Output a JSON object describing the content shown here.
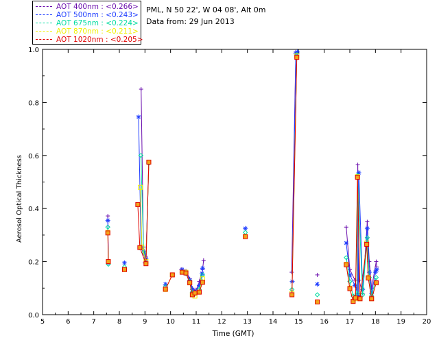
{
  "legend": [
    {
      "label": "AOT  400nm : <0.266>",
      "color": "#6a0dad"
    },
    {
      "label": "AOT  500nm : <0.243>",
      "color": "#1e3cff"
    },
    {
      "label": "AOT  675nm : <0.224>",
      "color": "#00dca0"
    },
    {
      "label": "AOT  870nm : <0.211>",
      "color": "#f0f000"
    },
    {
      "label": "AOT 1020nm : <0.205>",
      "color": "#e00000"
    }
  ],
  "info": {
    "location": "PML, N 50 22', W 04 08', Alt 0m",
    "date": "Data from: 29 Jun 2013"
  },
  "chart_data": {
    "type": "line",
    "xlabel": "Time (GMT)",
    "ylabel": "Aerosol Optical Thickness",
    "xlim": [
      5,
      20
    ],
    "ylim": [
      0,
      1.0
    ],
    "xticks": [
      "5",
      "6",
      "7",
      "8",
      "9",
      "10",
      "11",
      "12",
      "13",
      "14",
      "15",
      "16",
      "17",
      "18",
      "19",
      "20"
    ],
    "yticks": [
      "0.0",
      "0.2",
      "0.4",
      "0.6",
      "0.8",
      "1.0"
    ],
    "connect_gap": 0.3,
    "series": [
      {
        "name": "AOT 400nm",
        "color": "#6a0dad",
        "marker": "plus",
        "x": [
          7.55,
          7.57,
          8.85,
          8.94,
          8.97,
          8.99,
          9.04,
          9.15,
          10.42,
          10.6,
          10.75,
          10.85,
          10.95,
          11.05,
          11.12,
          11.25,
          11.29,
          14.73,
          14.89,
          14.95,
          15.73,
          16.86,
          17.0,
          17.2,
          17.3,
          17.31,
          17.36,
          17.5,
          17.68,
          17.76,
          17.85,
          18.03,
          18.05
        ],
        "y": [
          0.372,
          0.207,
          0.85,
          0.255,
          0.24,
          0.195,
          0.22,
          0.575,
          0.17,
          0.165,
          0.135,
          0.1,
          0.09,
          0.1,
          0.125,
          0.17,
          0.205,
          0.16,
          0.99,
          0.985,
          0.15,
          0.33,
          0.17,
          0.13,
          0.08,
          0.565,
          0.13,
          0.08,
          0.35,
          0.2,
          0.1,
          0.2,
          0.18
        ]
      },
      {
        "name": "AOT 500nm",
        "color": "#1e3cff",
        "marker": "star",
        "x": [
          7.55,
          7.57,
          8.2,
          8.75,
          8.85,
          8.98,
          9.04,
          9.15,
          9.8,
          10.45,
          10.6,
          10.75,
          10.85,
          10.95,
          11.12,
          11.23,
          11.25,
          12.92,
          14.75,
          14.89,
          14.95,
          15.73,
          16.86,
          17.0,
          17.2,
          17.33,
          17.35,
          17.5,
          17.68,
          17.76,
          17.85,
          18.0,
          18.05
        ],
        "y": [
          0.355,
          0.195,
          0.195,
          0.745,
          0.25,
          0.228,
          0.21,
          0.575,
          0.115,
          0.17,
          0.16,
          0.13,
          0.095,
          0.085,
          0.11,
          0.155,
          0.175,
          0.325,
          0.125,
          0.985,
          0.99,
          0.115,
          0.27,
          0.15,
          0.11,
          0.07,
          0.535,
          0.095,
          0.325,
          0.16,
          0.08,
          0.16,
          0.17
        ]
      },
      {
        "name": "AOT 675nm",
        "color": "#00dca0",
        "marker": "diamond",
        "x": [
          7.55,
          7.57,
          8.2,
          8.84,
          8.95,
          9.04,
          9.15,
          9.8,
          10.45,
          10.6,
          10.75,
          10.85,
          10.95,
          11.12,
          11.25,
          12.92,
          14.74,
          14.93,
          15.73,
          16.86,
          17.0,
          17.13,
          17.28,
          17.3,
          17.5,
          17.68,
          17.76,
          17.85,
          18.03
        ],
        "y": [
          0.33,
          0.19,
          0.18,
          0.6,
          0.235,
          0.195,
          0.57,
          0.105,
          0.16,
          0.155,
          0.125,
          0.085,
          0.078,
          0.095,
          0.15,
          0.31,
          0.095,
          0.98,
          0.075,
          0.215,
          0.125,
          0.07,
          0.08,
          0.525,
          0.075,
          0.29,
          0.14,
          0.07,
          0.14
        ]
      },
      {
        "name": "AOT 870nm",
        "color": "#f0f000",
        "marker": "square",
        "x": [
          7.55,
          7.57,
          8.2,
          8.82,
          8.88,
          9.04,
          9.15,
          9.8,
          10.07,
          10.45,
          10.6,
          10.75,
          10.85,
          10.95,
          11.12,
          11.25,
          12.92,
          14.74,
          14.93,
          15.73,
          16.86,
          17.0,
          17.13,
          17.22,
          17.3,
          17.4,
          17.66,
          17.72,
          17.85,
          18.03
        ],
        "y": [
          0.31,
          0.2,
          0.17,
          0.48,
          0.255,
          0.2,
          0.575,
          0.095,
          0.15,
          0.16,
          0.16,
          0.12,
          0.075,
          0.07,
          0.085,
          0.135,
          0.295,
          0.08,
          0.975,
          0.048,
          0.19,
          0.1,
          0.05,
          0.06,
          0.52,
          0.06,
          0.27,
          0.14,
          0.06,
          0.12
        ]
      },
      {
        "name": "AOT 1020nm",
        "color": "#e00000",
        "marker": "square",
        "x": [
          7.55,
          7.57,
          8.2,
          8.72,
          8.8,
          9.04,
          9.15,
          9.8,
          10.07,
          10.45,
          10.6,
          10.75,
          10.85,
          10.95,
          11.12,
          11.25,
          12.92,
          14.74,
          14.93,
          15.73,
          16.86,
          17.0,
          17.13,
          17.22,
          17.3,
          17.4,
          17.66,
          17.72,
          17.85,
          18.03
        ],
        "y": [
          0.308,
          0.2,
          0.17,
          0.415,
          0.253,
          0.192,
          0.575,
          0.096,
          0.15,
          0.16,
          0.157,
          0.12,
          0.075,
          0.082,
          0.085,
          0.122,
          0.294,
          0.075,
          0.97,
          0.048,
          0.188,
          0.098,
          0.05,
          0.063,
          0.518,
          0.06,
          0.265,
          0.138,
          0.06,
          0.12
        ]
      }
    ]
  }
}
